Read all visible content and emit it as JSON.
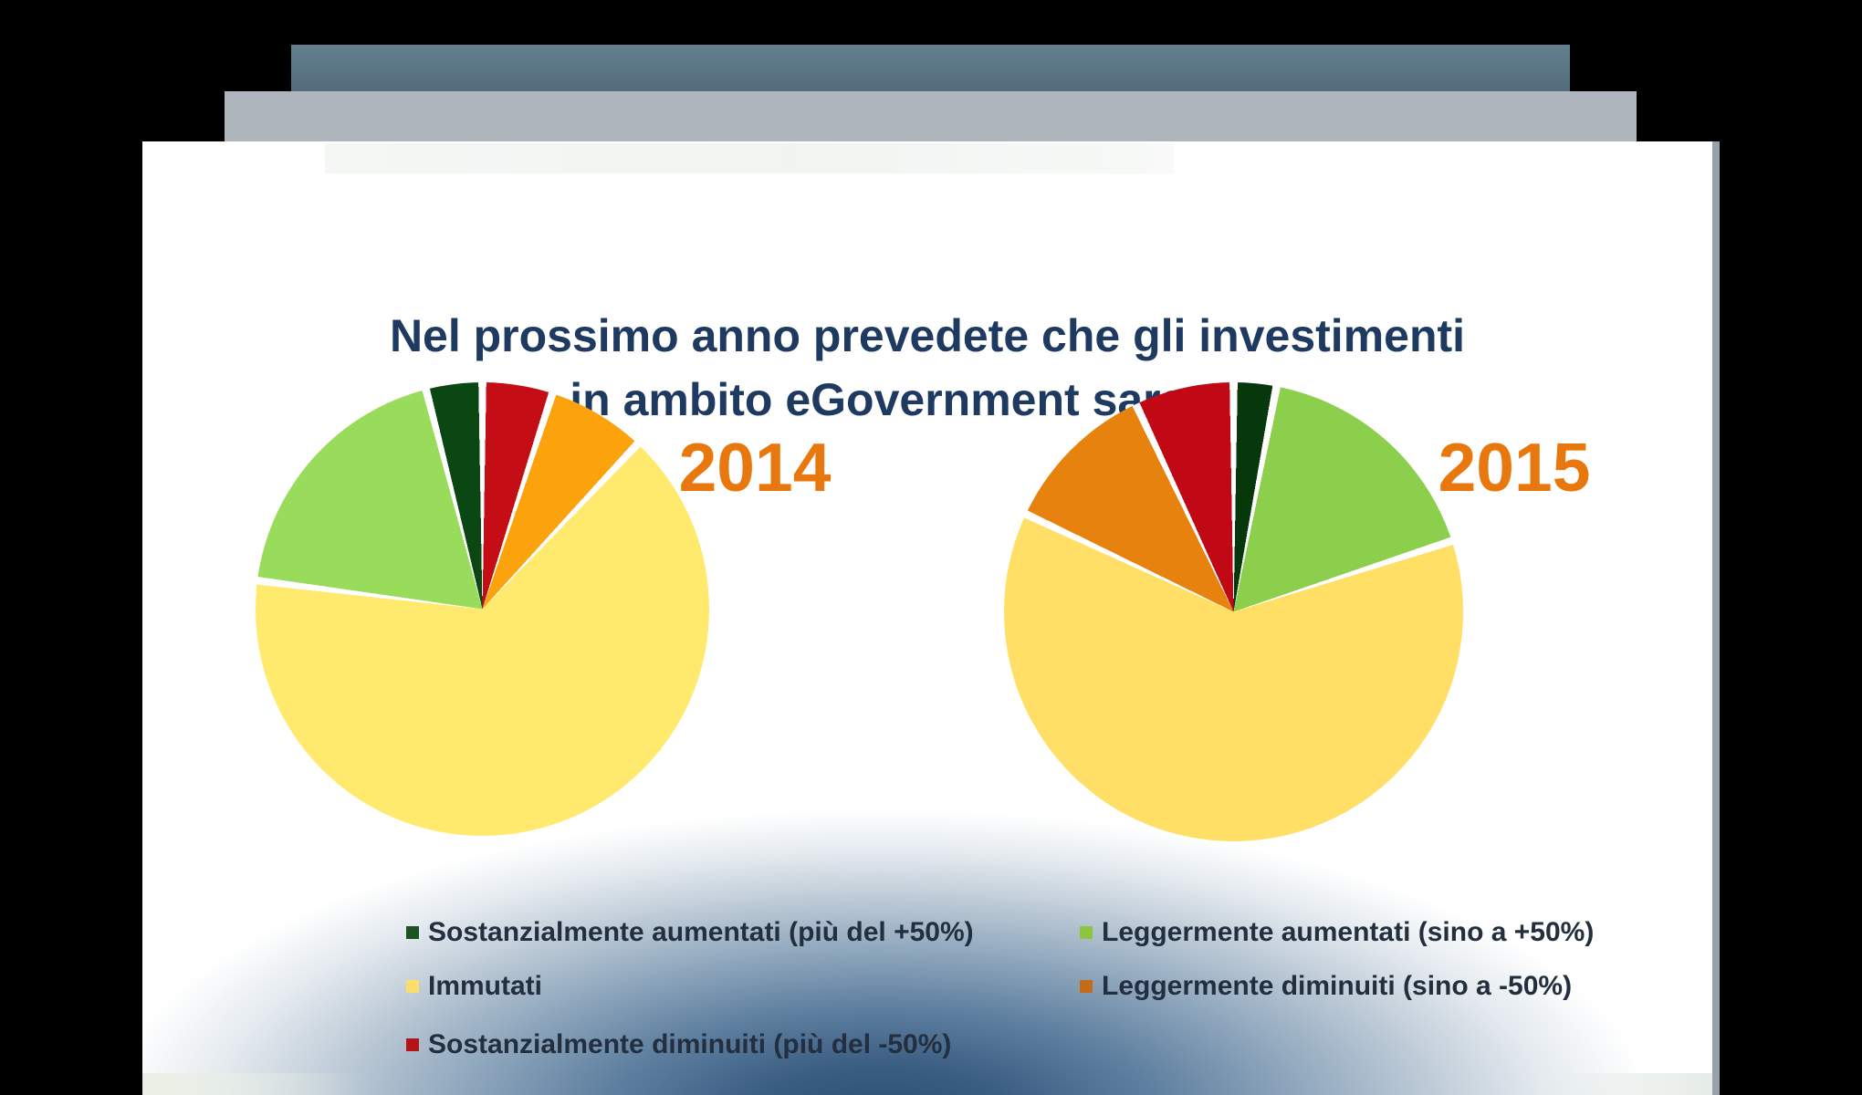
{
  "slide": {
    "title_line1": "Nel prossimo anno prevedete che gli investimenti",
    "title_line2": "in ambito eGovernment saranno:",
    "title_color": "#1F3A60"
  },
  "charts": [
    {
      "year": "2014",
      "year_color": "#E8770D",
      "slices": [
        {
          "label": "Sostanzialmente diminuiti (più del -50%)",
          "value": 5,
          "color": "#C50D16"
        },
        {
          "label": "Leggermente diminuiti (sino a -50%)",
          "value": 7,
          "color": "#FCA20D"
        },
        {
          "label": "Immutati",
          "value": 65,
          "color": "#FFEA6E"
        },
        {
          "label": "Leggermente aumentati (sino a +50%)",
          "value": 19,
          "color": "#99DC5B"
        },
        {
          "label": "Sostanzialmente aumentati (più del +50%)",
          "value": 4,
          "color": "#0B4712"
        }
      ]
    },
    {
      "year": "2015",
      "year_color": "#E8770D",
      "slices": [
        {
          "label": "Sostanzialmente aumentati (più del +50%)",
          "value": 3,
          "color": "#07380B"
        },
        {
          "label": "Leggermente aumentati (sino a +50%)",
          "value": 17,
          "color": "#8BCF4D"
        },
        {
          "label": "Immutati",
          "value": 62,
          "color": "#FFDF66"
        },
        {
          "label": "Leggermente diminuiti (sino a -50%)",
          "value": 11,
          "color": "#E8820E"
        },
        {
          "label": "Sostanzialmente diminuiti (più del -50%)",
          "value": 7,
          "color": "#C00914"
        }
      ]
    }
  ],
  "legend": {
    "items": [
      {
        "label": "Sostanzialmente aumentati (più del +50%)",
        "color": "#1E5222"
      },
      {
        "label": "Leggermente aumentati (sino a +50%)",
        "color": "#8CC63F"
      },
      {
        "label": "Immutati",
        "color": "#FBDE6B"
      },
      {
        "label": "Leggermente diminuiti (sino a -50%)",
        "color": "#C76A15"
      },
      {
        "label": "Sostanzialmente diminuiti (più del -50%)",
        "color": "#B41318"
      }
    ]
  },
  "chart_data": [
    {
      "type": "pie",
      "title": "2014",
      "categories": [
        "Sostanzialmente diminuiti (più del -50%)",
        "Leggermente diminuiti (sino a -50%)",
        "Immutati",
        "Leggermente aumentati (sino a +50%)",
        "Sostanzialmente aumentati (più del +50%)"
      ],
      "values": [
        5,
        7,
        65,
        19,
        4
      ],
      "colors": [
        "#C50D16",
        "#FCA20D",
        "#FFEA6E",
        "#99DC5B",
        "#0B4712"
      ],
      "start_angle_deg": 0,
      "direction": "clockwise",
      "data_labels": false,
      "legend_position": "bottom"
    },
    {
      "type": "pie",
      "title": "2015",
      "categories": [
        "Sostanzialmente aumentati (più del +50%)",
        "Leggermente aumentati (sino a +50%)",
        "Immutati",
        "Leggermente diminuiti (sino a -50%)",
        "Sostanzialmente diminuiti (più del -50%)"
      ],
      "values": [
        3,
        17,
        62,
        11,
        7
      ],
      "colors": [
        "#07380B",
        "#8BCF4D",
        "#FFDF66",
        "#E8820E",
        "#C00914"
      ],
      "start_angle_deg": 0,
      "direction": "clockwise",
      "data_labels": false,
      "legend_position": "bottom"
    }
  ]
}
